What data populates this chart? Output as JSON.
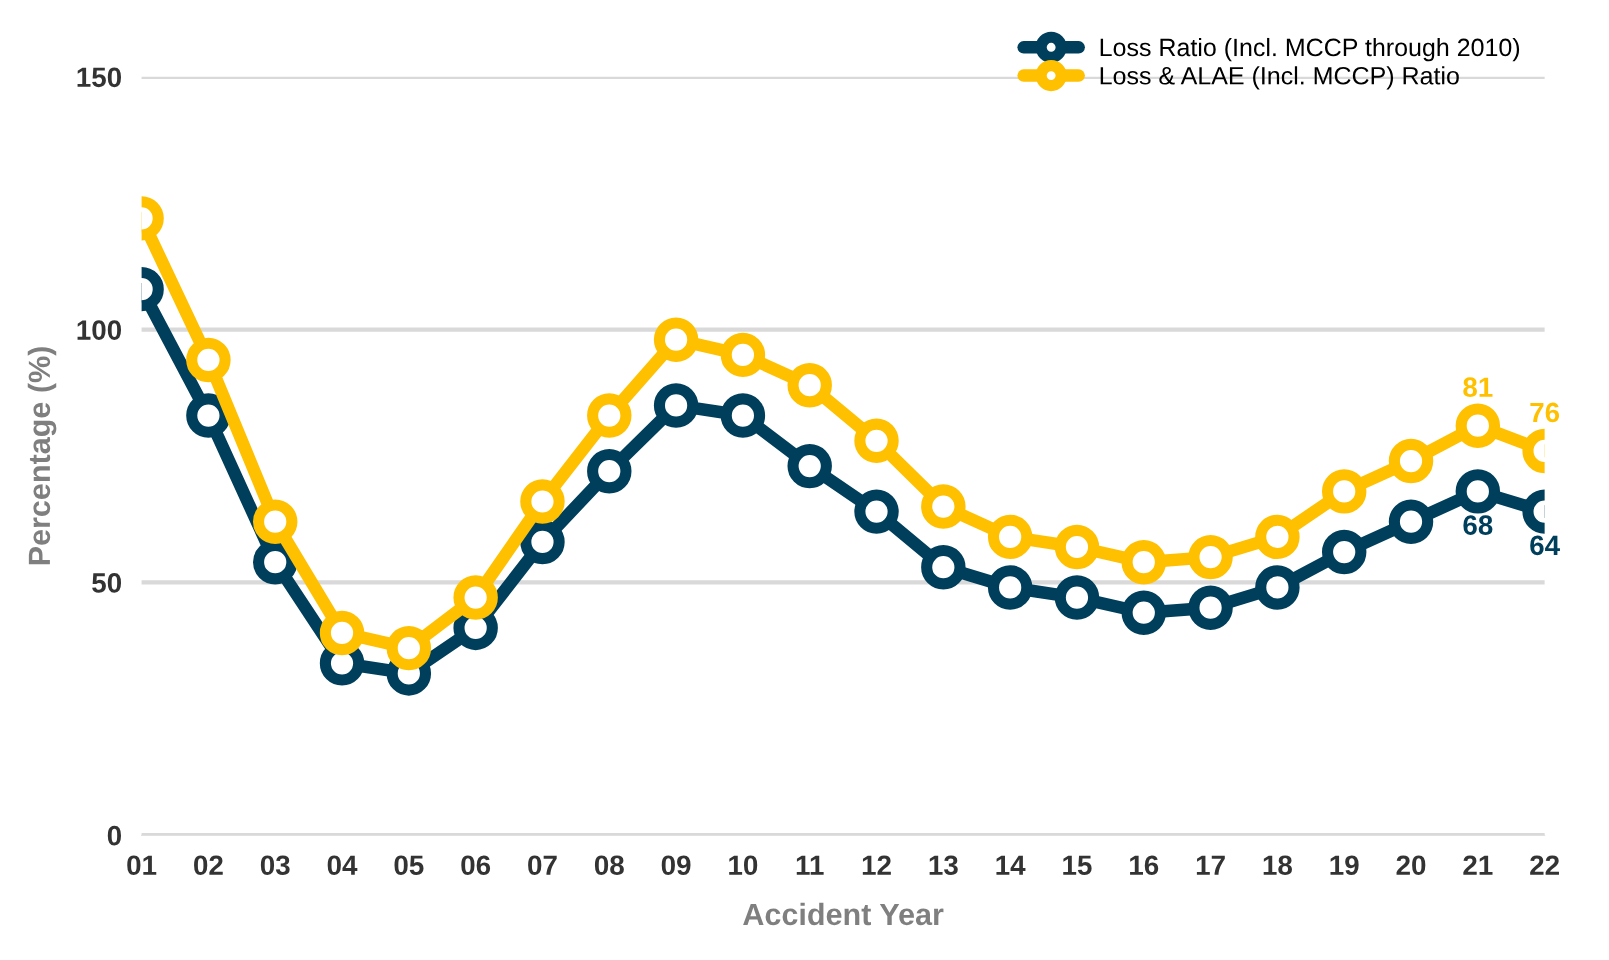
{
  "chart_data": {
    "type": "line",
    "xlabel": "Accident Year",
    "ylabel": "Percentage (%)",
    "categories": [
      "01",
      "02",
      "03",
      "04",
      "05",
      "06",
      "07",
      "08",
      "09",
      "10",
      "11",
      "12",
      "13",
      "14",
      "15",
      "16",
      "17",
      "18",
      "19",
      "20",
      "21",
      "22"
    ],
    "series": [
      {
        "name": "Loss Ratio (Incl. MCCP through 2010)",
        "color": "#003f5c",
        "values": [
          108,
          83,
          54,
          34,
          32,
          41,
          58,
          72,
          85,
          83,
          73,
          64,
          53,
          49,
          47,
          44,
          45,
          49,
          56,
          62,
          68,
          64
        ],
        "value_labels": [
          null,
          null,
          null,
          null,
          null,
          null,
          null,
          null,
          null,
          null,
          null,
          null,
          null,
          null,
          null,
          null,
          null,
          null,
          null,
          null,
          "68",
          "64"
        ]
      },
      {
        "name": "Loss & ALAE (Incl. MCCP) Ratio",
        "color": "#ffc000",
        "values": [
          122,
          94,
          62,
          40,
          37,
          47,
          66,
          83,
          98,
          95,
          89,
          78,
          65,
          59,
          57,
          54,
          55,
          59,
          68,
          74,
          81,
          76
        ],
        "value_labels": [
          null,
          null,
          null,
          null,
          null,
          null,
          null,
          null,
          null,
          null,
          null,
          null,
          null,
          null,
          null,
          null,
          null,
          null,
          null,
          null,
          "81",
          "76"
        ]
      }
    ],
    "ylim": [
      0,
      150
    ],
    "yticks": [
      0,
      50,
      100,
      150
    ],
    "grid": "y",
    "legend": "top right",
    "marker": "circle",
    "line_style": "solid"
  }
}
